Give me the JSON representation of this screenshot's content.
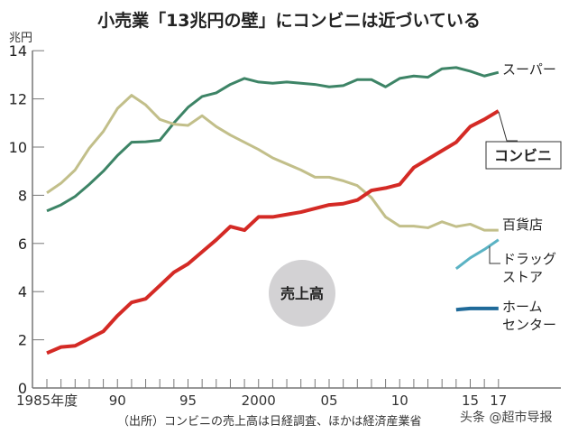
{
  "chart_data": {
    "type": "line",
    "title": "小売業「13兆円の壁」にコンビニは近づいている",
    "ylabel": "兆円",
    "ylim": [
      0,
      14
    ],
    "yticks": [
      0,
      2,
      4,
      6,
      8,
      10,
      12,
      14
    ],
    "xlim": [
      1985,
      2017
    ],
    "xtick_labels": [
      {
        "x": 1985,
        "label": "1985年度"
      },
      {
        "x": 1990,
        "label": "90"
      },
      {
        "x": 1995,
        "label": "95"
      },
      {
        "x": 2000,
        "label": "2000"
      },
      {
        "x": 2005,
        "label": "05"
      },
      {
        "x": 2010,
        "label": "10"
      },
      {
        "x": 2015,
        "label": "15"
      },
      {
        "x": 2017,
        "label": "17"
      }
    ],
    "grid": false,
    "annotation": "売上高",
    "source": "（出所）コンビニの売上高は日経調査、ほかは経済産業省",
    "series": [
      {
        "name": "スーパー",
        "color": "#3d8466",
        "x_start": 1985,
        "values": [
          7.35,
          7.6,
          7.95,
          8.45,
          9.0,
          9.65,
          10.2,
          10.22,
          10.28,
          11.0,
          11.65,
          12.1,
          12.25,
          12.6,
          12.85,
          12.7,
          12.65,
          12.7,
          12.65,
          12.6,
          12.5,
          12.55,
          12.8,
          12.8,
          12.5,
          12.85,
          12.95,
          12.9,
          13.25,
          13.3,
          13.15,
          12.95,
          13.1
        ]
      },
      {
        "name": "百貨店",
        "color": "#c2bf8a",
        "x_start": 1985,
        "values": [
          8.1,
          8.5,
          9.05,
          9.95,
          10.65,
          11.6,
          12.15,
          11.75,
          11.15,
          10.95,
          10.9,
          11.3,
          10.85,
          10.5,
          10.2,
          9.9,
          9.55,
          9.3,
          9.05,
          8.75,
          8.75,
          8.6,
          8.4,
          7.9,
          7.1,
          6.72,
          6.72,
          6.65,
          6.9,
          6.7,
          6.8,
          6.55,
          6.55
        ]
      },
      {
        "name": "コンビニ",
        "color": "#d42a25",
        "x_start": 1985,
        "values": [
          1.45,
          1.7,
          1.75,
          2.05,
          2.35,
          3.0,
          3.55,
          3.7,
          4.25,
          4.8,
          5.15,
          5.65,
          6.15,
          6.7,
          6.55,
          7.1,
          7.1,
          7.2,
          7.3,
          7.45,
          7.6,
          7.65,
          7.8,
          8.2,
          8.3,
          8.45,
          9.15,
          9.5,
          9.85,
          10.2,
          10.85,
          11.15,
          11.5
        ]
      },
      {
        "name": "ドラッグストア",
        "color": "#5bb3c4",
        "x_start": 2014,
        "values": [
          4.95,
          5.4,
          5.75,
          6.15
        ]
      },
      {
        "name": "ホームセンター",
        "color": "#1f6a99",
        "x_start": 2014,
        "values": [
          3.25,
          3.3,
          3.3,
          3.3
        ]
      }
    ]
  },
  "watermark": "头条 @超市导报"
}
